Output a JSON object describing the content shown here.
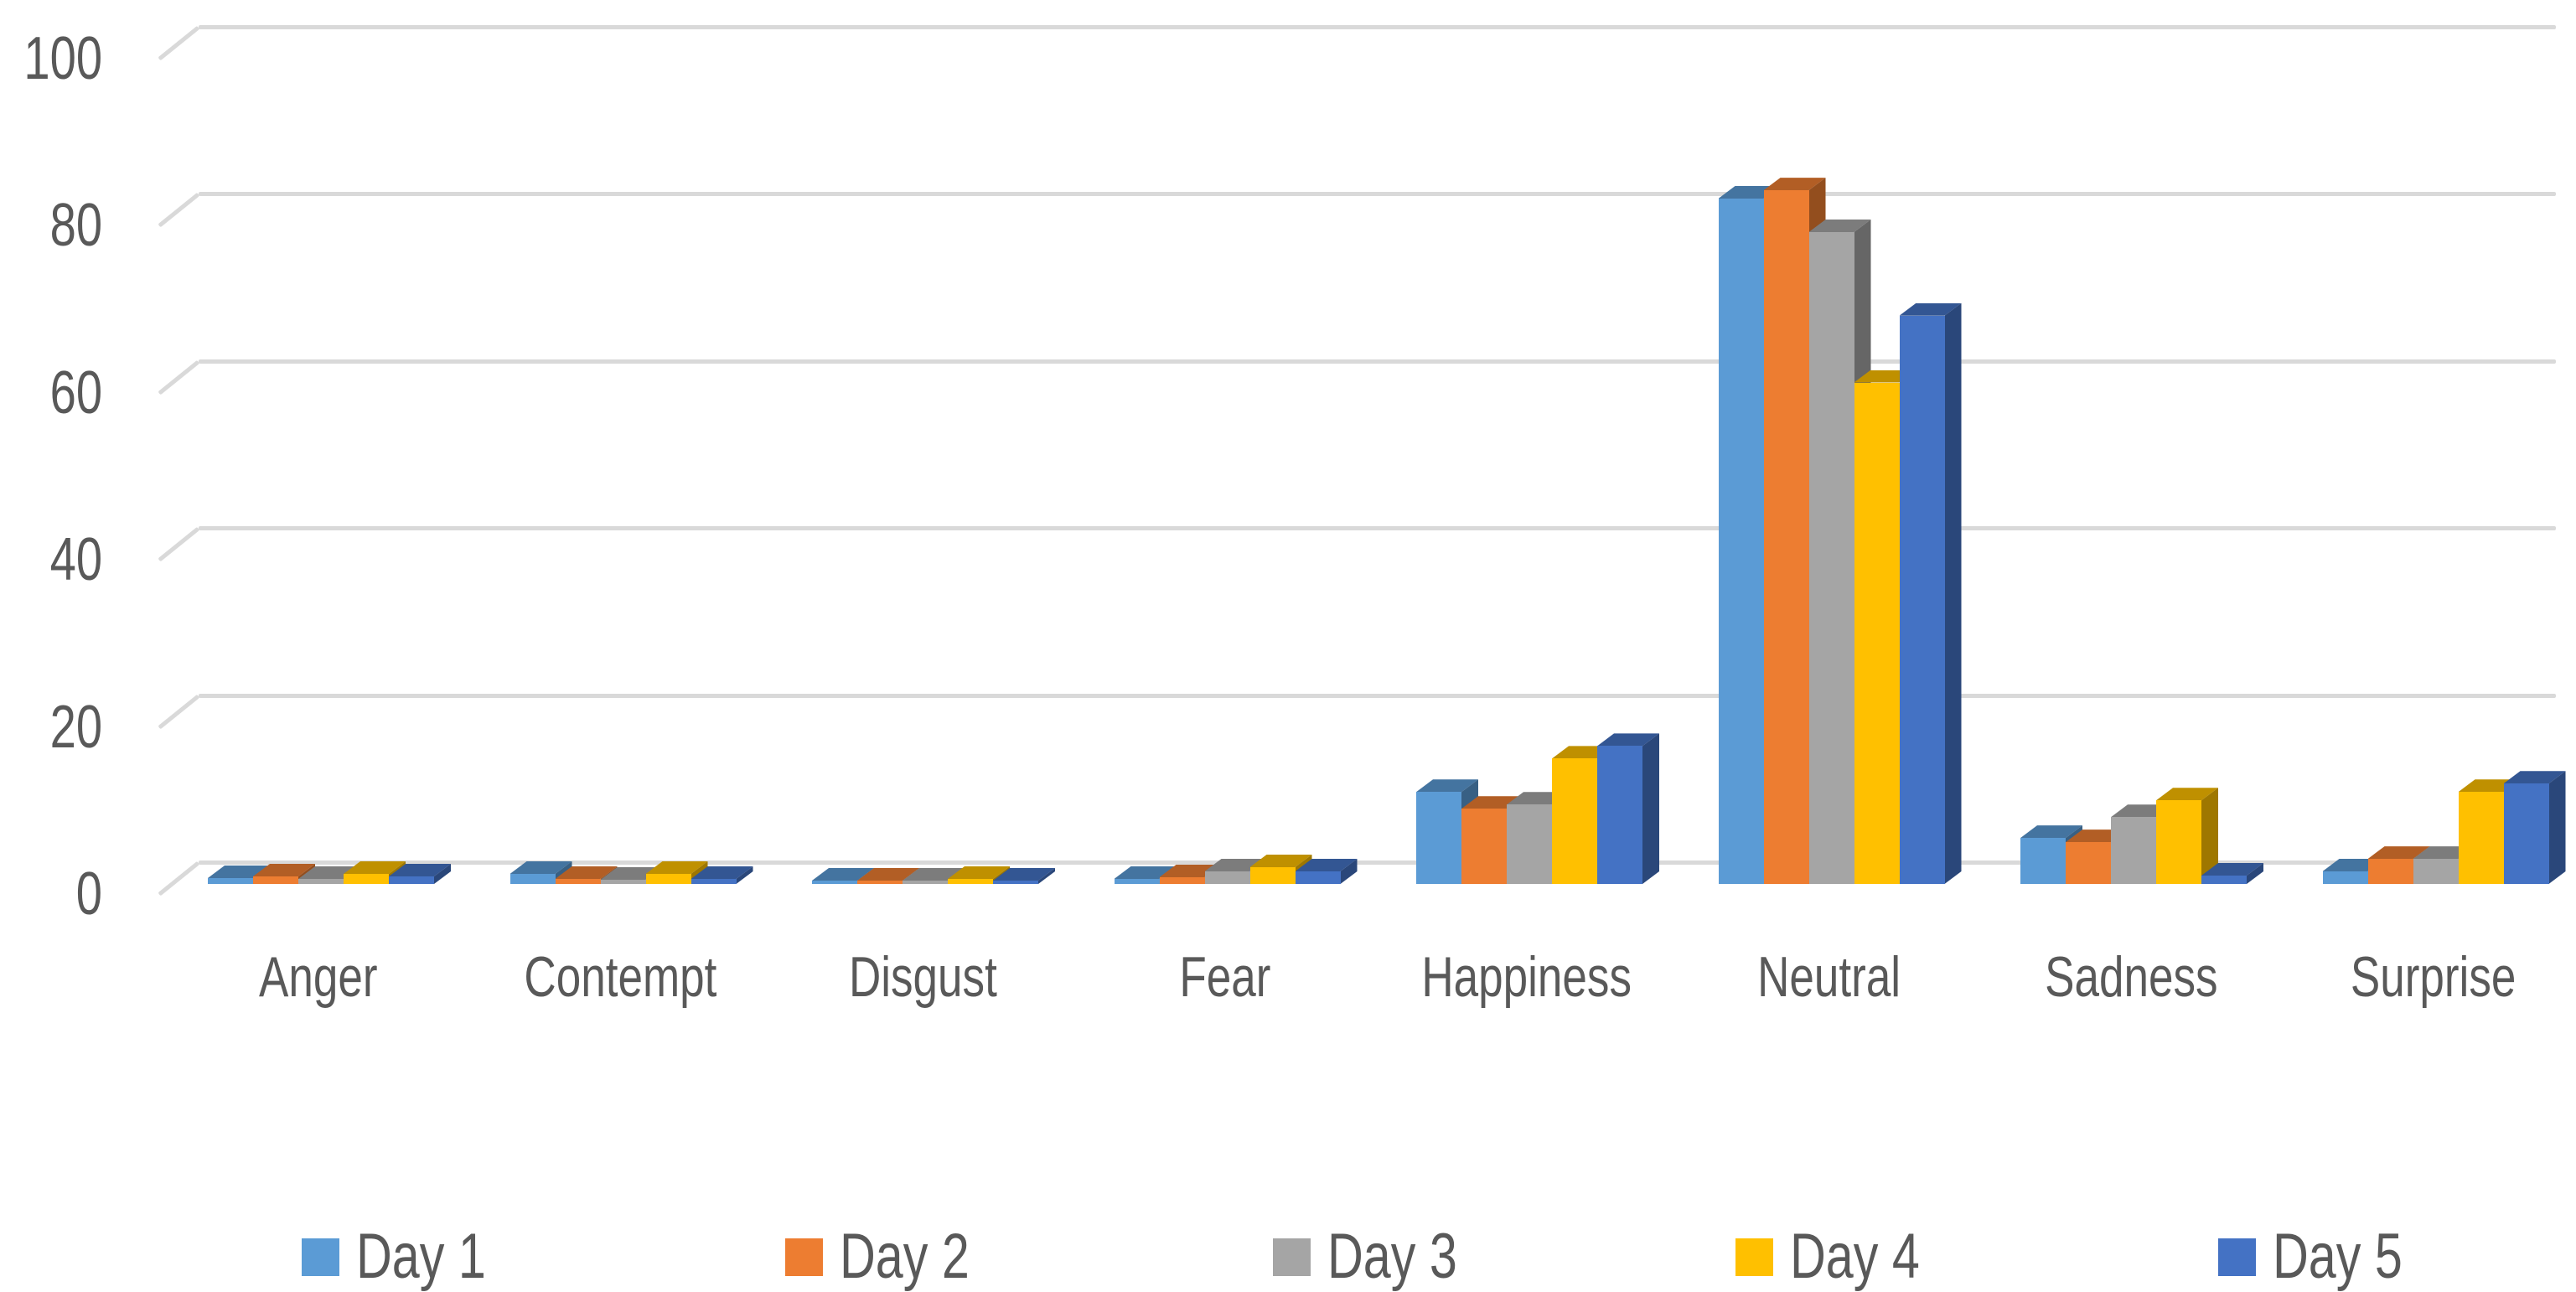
{
  "chart_data": {
    "type": "bar",
    "subtype": "3d-clustered-column",
    "title": "",
    "xlabel": "",
    "ylabel": "",
    "categories": [
      "Anger",
      "Contempt",
      "Disgust",
      "Fear",
      "Happiness",
      "Neutral",
      "Sadness",
      "Surprise"
    ],
    "series": [
      {
        "name": "Day 1",
        "color": "#5B9BD5",
        "values": [
          0.7,
          1.2,
          0.4,
          0.6,
          11,
          82,
          5.5,
          1.5
        ]
      },
      {
        "name": "Day 2",
        "color": "#ED7D31",
        "values": [
          0.9,
          0.6,
          0.4,
          0.8,
          9,
          83,
          5,
          3
        ]
      },
      {
        "name": "Day 3",
        "color": "#A5A5A5",
        "values": [
          0.6,
          0.5,
          0.4,
          1.5,
          9.5,
          78,
          8,
          3
        ]
      },
      {
        "name": "Day 4",
        "color": "#FFC000",
        "values": [
          1.2,
          1.2,
          0.6,
          2,
          15,
          60,
          10,
          11
        ]
      },
      {
        "name": "Day 5",
        "color": "#4472C4",
        "values": [
          0.9,
          0.6,
          0.4,
          1.5,
          16.5,
          68,
          1,
          12
        ]
      }
    ],
    "yticks": [
      0,
      20,
      40,
      60,
      80,
      100
    ],
    "ylim": [
      0,
      100
    ],
    "grid": true,
    "legend_position": "bottom",
    "axis_text_color": "#595959",
    "gridline_color": "#D9D9D9",
    "background_color": "#FFFFFF"
  }
}
